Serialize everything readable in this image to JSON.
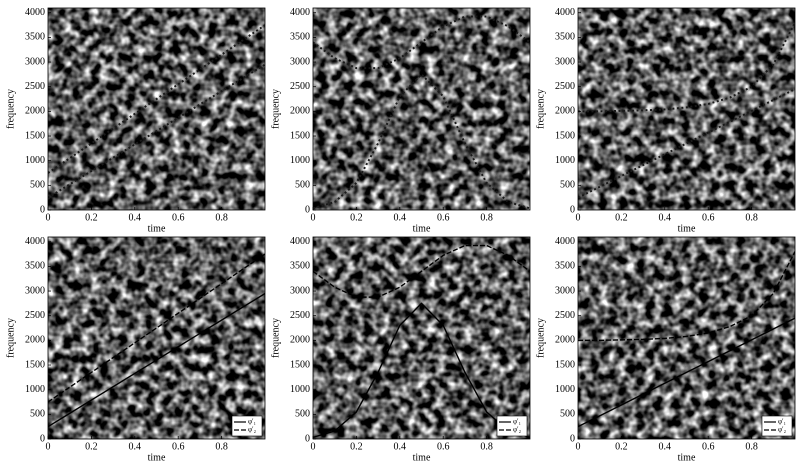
{
  "chart_data": [
    {
      "type": "line",
      "xlabel": "time",
      "ylabel": "frequency",
      "x": [
        0,
        0.1,
        0.2,
        0.3,
        0.4,
        0.5,
        0.6,
        0.7,
        0.8,
        0.9,
        1
      ],
      "xlim": [
        0,
        1
      ],
      "ylim": [
        0,
        4096
      ],
      "xticks": [
        0,
        0.2,
        0.4,
        0.6,
        0.8
      ],
      "yticks": [
        0,
        500,
        1000,
        1500,
        2000,
        2500,
        3000,
        3500,
        4000
      ],
      "series": [
        {
          "color": "#1a1a1a",
          "style": "dotted",
          "values": [
            250,
            520,
            790,
            1060,
            1330,
            1600,
            1870,
            2140,
            2410,
            2680,
            2950
          ]
        },
        {
          "color": "#1a1a1a",
          "style": "dotted",
          "values": [
            750,
            1050,
            1350,
            1650,
            1950,
            2250,
            2550,
            2850,
            3150,
            3450,
            3750
          ]
        }
      ]
    },
    {
      "type": "line",
      "xlabel": "time",
      "ylabel": "frequency",
      "x": [
        0,
        0.1,
        0.2,
        0.3,
        0.4,
        0.5,
        0.6,
        0.7,
        0.8,
        0.9,
        1
      ],
      "xlim": [
        0,
        1
      ],
      "ylim": [
        0,
        4096
      ],
      "xticks": [
        0,
        0.2,
        0.4,
        0.6,
        0.8
      ],
      "yticks": [
        0,
        500,
        1000,
        1500,
        2000,
        2500,
        3000,
        3500,
        4000
      ],
      "series": [
        {
          "color": "#1a1a1a",
          "style": "dotted",
          "values": [
            33,
            162,
            550,
            1353,
            2304,
            2750,
            2304,
            1353,
            550,
            162,
            33
          ]
        },
        {
          "color": "#1a1a1a",
          "style": "dotted",
          "values": [
            3400,
            3077,
            2877,
            2877,
            3077,
            3400,
            3723,
            3923,
            3923,
            3723,
            3400
          ]
        }
      ]
    },
    {
      "type": "line",
      "xlabel": "time",
      "ylabel": "frequency",
      "x": [
        0,
        0.1,
        0.2,
        0.3,
        0.4,
        0.5,
        0.6,
        0.7,
        0.8,
        0.9,
        1
      ],
      "xlim": [
        0,
        1
      ],
      "ylim": [
        0,
        4096
      ],
      "xticks": [
        0,
        0.2,
        0.4,
        0.6,
        0.8
      ],
      "yticks": [
        0,
        500,
        1000,
        1500,
        2000,
        2500,
        3000,
        3500,
        4000
      ],
      "series": [
        {
          "color": "#1a1a1a",
          "style": "dotted",
          "values": [
            250,
            470,
            690,
            910,
            1130,
            1350,
            1570,
            1790,
            2010,
            2230,
            2450
          ]
        },
        {
          "color": "#1a1a1a",
          "style": "dotted",
          "values": [
            2000,
            2000,
            2010,
            2020,
            2040,
            2080,
            2150,
            2280,
            2500,
            2950,
            3800
          ]
        }
      ]
    },
    {
      "type": "line",
      "xlabel": "time",
      "ylabel": "frequency",
      "x": [
        0,
        0.1,
        0.2,
        0.3,
        0.4,
        0.5,
        0.6,
        0.7,
        0.8,
        0.9,
        1
      ],
      "xlim": [
        0,
        1
      ],
      "ylim": [
        0,
        4096
      ],
      "xticks": [
        0,
        0.2,
        0.4,
        0.6,
        0.8
      ],
      "yticks": [
        0,
        500,
        1000,
        1500,
        2000,
        2500,
        3000,
        3500,
        4000
      ],
      "legend": "lower right",
      "series": [
        {
          "name": "φ′₁",
          "color": "#000000",
          "style": "solid",
          "values": [
            250,
            520,
            790,
            1060,
            1330,
            1600,
            1870,
            2140,
            2410,
            2680,
            2950
          ]
        },
        {
          "name": "φ′₂",
          "color": "#000000",
          "style": "dashed",
          "values": [
            750,
            1050,
            1350,
            1650,
            1950,
            2250,
            2550,
            2850,
            3150,
            3450,
            3750
          ]
        }
      ]
    },
    {
      "type": "line",
      "xlabel": "time",
      "ylabel": "frequency",
      "x": [
        0,
        0.1,
        0.2,
        0.3,
        0.4,
        0.5,
        0.6,
        0.7,
        0.8,
        0.9,
        1
      ],
      "xlim": [
        0,
        1
      ],
      "ylim": [
        0,
        4096
      ],
      "xticks": [
        0,
        0.2,
        0.4,
        0.6,
        0.8
      ],
      "yticks": [
        0,
        500,
        1000,
        1500,
        2000,
        2500,
        3000,
        3500,
        4000
      ],
      "legend": "lower right",
      "series": [
        {
          "name": "φ′₁",
          "color": "#000000",
          "style": "solid",
          "values": [
            33,
            162,
            550,
            1353,
            2304,
            2750,
            2304,
            1353,
            550,
            162,
            33
          ]
        },
        {
          "name": "φ′₂",
          "color": "#000000",
          "style": "dashed",
          "values": [
            3400,
            3077,
            2877,
            2877,
            3077,
            3400,
            3723,
            3923,
            3923,
            3723,
            3400
          ]
        }
      ]
    },
    {
      "type": "line",
      "xlabel": "time",
      "ylabel": "frequency",
      "x": [
        0,
        0.1,
        0.2,
        0.3,
        0.4,
        0.5,
        0.6,
        0.7,
        0.8,
        0.9,
        1
      ],
      "xlim": [
        0,
        1
      ],
      "ylim": [
        0,
        4096
      ],
      "xticks": [
        0,
        0.2,
        0.4,
        0.6,
        0.8
      ],
      "yticks": [
        0,
        500,
        1000,
        1500,
        2000,
        2500,
        3000,
        3500,
        4000
      ],
      "legend": "lower right",
      "series": [
        {
          "name": "φ′₁",
          "color": "#000000",
          "style": "solid",
          "values": [
            250,
            470,
            690,
            910,
            1130,
            1350,
            1570,
            1790,
            2010,
            2230,
            2450
          ]
        },
        {
          "name": "φ′₂",
          "color": "#000000",
          "style": "dashed",
          "values": [
            2000,
            2000,
            2010,
            2020,
            2040,
            2080,
            2150,
            2280,
            2500,
            2950,
            3800
          ]
        }
      ]
    }
  ]
}
